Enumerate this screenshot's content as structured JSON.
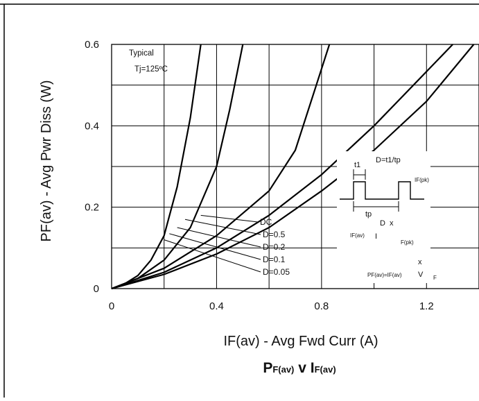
{
  "chart_data": {
    "type": "line",
    "xlabel": "IF(av) - Avg Fwd Curr (A)",
    "ylabel": "PF(av) - Avg Pwr Diss (W)",
    "xlim": [
      0,
      1.4
    ],
    "ylim": [
      0,
      0.6
    ],
    "x_ticks": [
      "0",
      "0.4",
      "0.8",
      "1.2"
    ],
    "y_ticks": [
      "0",
      "0.2",
      "0.4",
      "0.6"
    ],
    "grid": true,
    "title_main": "P",
    "title_sub1": "F(av)",
    "title_v": "v",
    "title_i": "I",
    "title_sub2": "F(av)",
    "annotation_line1": "Typical",
    "annotation_line2": "Tj=125ºC",
    "series": [
      {
        "name": "D=0.05",
        "points": [
          [
            0,
            0
          ],
          [
            0.05,
            0.012
          ],
          [
            0.1,
            0.032
          ],
          [
            0.15,
            0.07
          ],
          [
            0.2,
            0.13
          ],
          [
            0.25,
            0.25
          ],
          [
            0.3,
            0.42
          ],
          [
            0.34,
            0.6
          ]
        ]
      },
      {
        "name": "D=0.1",
        "points": [
          [
            0,
            0
          ],
          [
            0.1,
            0.025
          ],
          [
            0.2,
            0.07
          ],
          [
            0.3,
            0.15
          ],
          [
            0.4,
            0.3
          ],
          [
            0.45,
            0.44
          ],
          [
            0.5,
            0.6
          ]
        ]
      },
      {
        "name": "D=0.2",
        "points": [
          [
            0,
            0
          ],
          [
            0.2,
            0.05
          ],
          [
            0.4,
            0.13
          ],
          [
            0.6,
            0.24
          ],
          [
            0.7,
            0.34
          ],
          [
            0.78,
            0.5
          ],
          [
            0.83,
            0.6
          ]
        ]
      },
      {
        "name": "D=0.5",
        "points": [
          [
            0,
            0
          ],
          [
            0.2,
            0.04
          ],
          [
            0.4,
            0.1
          ],
          [
            0.6,
            0.18
          ],
          [
            0.8,
            0.28
          ],
          [
            1.0,
            0.4
          ],
          [
            1.15,
            0.5
          ],
          [
            1.3,
            0.6
          ]
        ]
      },
      {
        "name": "DC",
        "points": [
          [
            0,
            0
          ],
          [
            0.2,
            0.035
          ],
          [
            0.4,
            0.085
          ],
          [
            0.6,
            0.15
          ],
          [
            0.8,
            0.24
          ],
          [
            1.0,
            0.34
          ],
          [
            1.2,
            0.46
          ],
          [
            1.38,
            0.6
          ]
        ]
      }
    ],
    "inset_labels": {
      "t1": "t1",
      "duty": "D=t1/tp",
      "ipk": "IF(pk)",
      "tp": "tp",
      "d": "D",
      "x": "x",
      "ifav": "IF(av)",
      "bar": "I",
      "ifpk": "F(pk)",
      "x2": "x",
      "pfav": "PF(av)=IF(av)",
      "v": "V",
      "f": "F"
    }
  }
}
